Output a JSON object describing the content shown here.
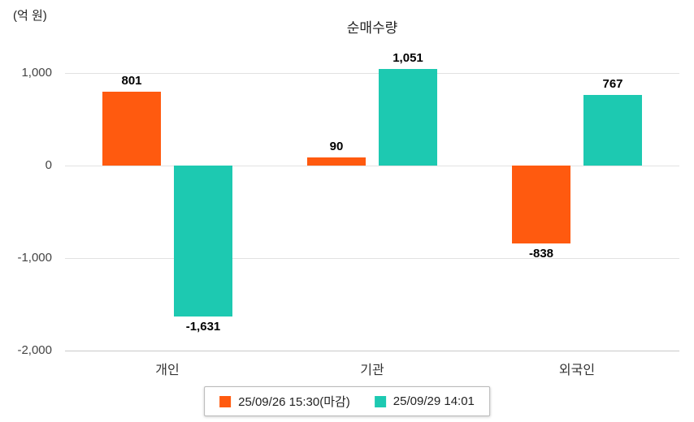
{
  "chart_data": {
    "type": "bar",
    "title": "순매수량",
    "unit_label": "(억 원)",
    "categories": [
      "개인",
      "기관",
      "외국인"
    ],
    "series": [
      {
        "name": "25/09/26 15:30(마감)",
        "color": "#ff5a0f",
        "values": [
          801,
          90,
          -838
        ],
        "labels": [
          "801",
          "90",
          "-838"
        ]
      },
      {
        "name": "25/09/29 14:01",
        "color": "#1dc9b1",
        "values": [
          -1631,
          1051,
          767
        ],
        "labels": [
          "-1,631",
          "1,051",
          "767"
        ]
      }
    ],
    "ylim": [
      -2000,
      1250
    ],
    "yticks": [
      {
        "value": 1000,
        "label": "1,000"
      },
      {
        "value": 0,
        "label": "0"
      },
      {
        "value": -1000,
        "label": "-1,000"
      },
      {
        "value": -2000,
        "label": "-2,000"
      }
    ],
    "grid": true,
    "legend_position": "bottom"
  }
}
